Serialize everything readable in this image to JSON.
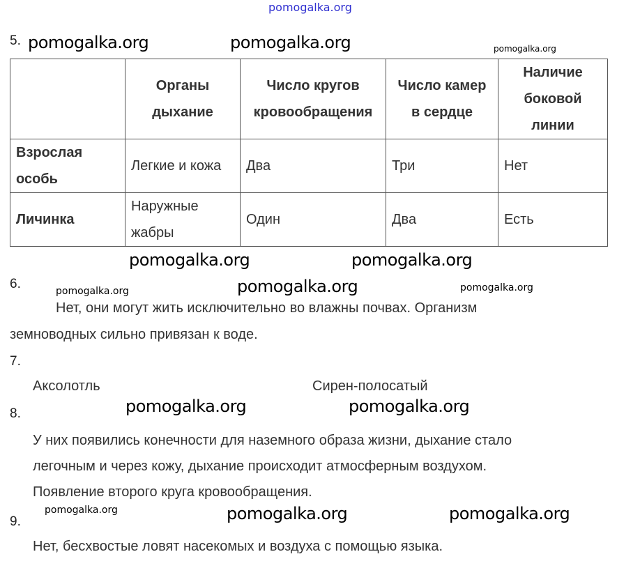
{
  "watermark": "pomogalka.org",
  "q5": {
    "number": "5.",
    "table": {
      "headers": [
        "",
        "Органы дыхание",
        "Число кругов кровообращения",
        "Число камер в сердце",
        "Наличие боковой линии"
      ],
      "rows": [
        [
          "Взрослая особь",
          "Легкие и кожа",
          "Два",
          "Три",
          "Нет"
        ],
        [
          "Личинка",
          "Наружные жабры",
          "Один",
          "Два",
          "Есть"
        ]
      ]
    }
  },
  "q6": {
    "number": "6.",
    "line1": "Нет, они могут жить исключительно во влажны почвах. Организм",
    "line2": "земноводных сильно привязан к воде."
  },
  "q7": {
    "number": "7.",
    "left": "Аксолотль",
    "right": "Сирен-полосатый"
  },
  "q8": {
    "number": "8.",
    "lines": [
      "У них появились конечности для наземного образа жизни, дыхание стало",
      "легочным и через кожу, дыхание происходит атмосферным воздухом.",
      "Появление второго круга кровообращения."
    ]
  },
  "q9": {
    "number": "9.",
    "text": "Нет, бесхвостые ловят насекомых и воздуха с помощью языка."
  }
}
